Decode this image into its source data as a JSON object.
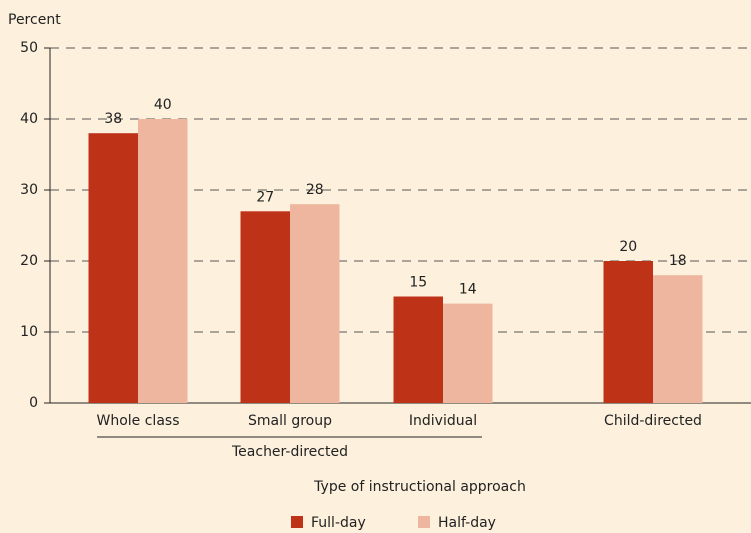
{
  "chart_data": {
    "type": "bar",
    "y_label": "Percent",
    "x_label": "Type of instructional approach",
    "group_label": "Teacher-directed",
    "categories": [
      "Whole class",
      "Small group",
      "Individual",
      "Child-directed"
    ],
    "series": [
      {
        "name": "Full-day",
        "color": "#be3218",
        "values": [
          38,
          27,
          15,
          20
        ]
      },
      {
        "name": "Half-day",
        "color": "#eeb59f",
        "values": [
          40,
          28,
          14,
          18
        ]
      }
    ],
    "ylim": [
      0,
      50
    ],
    "yticks": [
      0,
      10,
      20,
      30,
      40,
      50
    ],
    "grid": true,
    "legend": "bottom"
  }
}
